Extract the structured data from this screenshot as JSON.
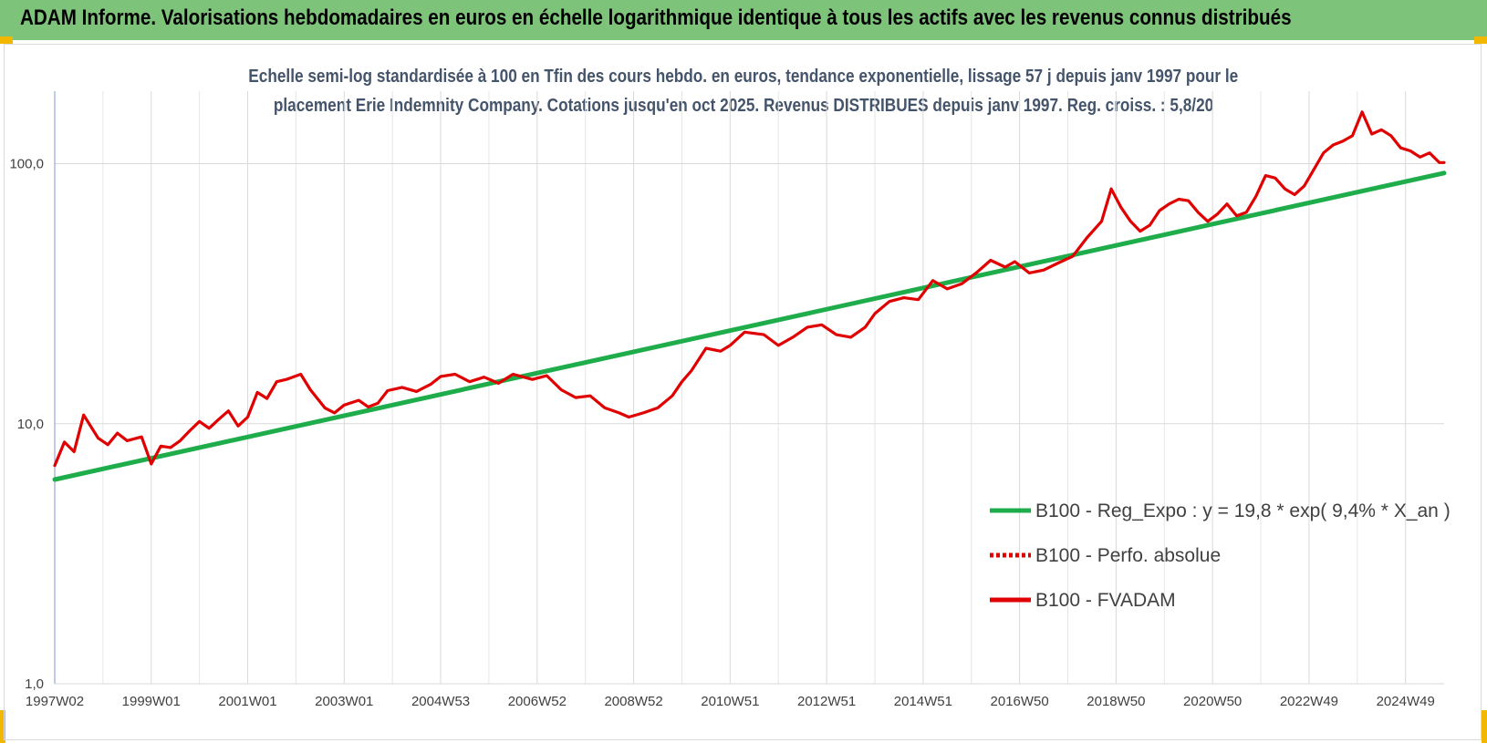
{
  "banner": {
    "text": "ADAM Informe. Valorisations hebdomadaires en euros en échelle logarithmique identique à tous les actifs avec les revenus connus distribués"
  },
  "chart_data": {
    "type": "line",
    "title_line1": "Echelle semi-log standardisée à 100 en Tfin des cours hebdo. en euros, tendance exponentielle, lissage 57 j depuis janv 1997 pour le",
    "title_line2": "placement Erie Indemnity Company. Cotations jusqu'en oct 2025. Revenus DISTRIBUES depuis janv 1997. Reg. croiss. : 5,8/20",
    "y_scale": "log",
    "ylim": [
      1,
      190
    ],
    "y_ticks": [
      1,
      10,
      100
    ],
    "y_tick_labels": [
      "1,0",
      "10,0",
      "100,0"
    ],
    "x_range": [
      1997.0,
      2025.8
    ],
    "x_ticks": [
      1997.0,
      1999.0,
      2001.0,
      2003.0,
      2005.0,
      2007.0,
      2009.0,
      2011.0,
      2013.0,
      2015.0,
      2017.0,
      2019.0,
      2021.0,
      2023.0,
      2025.0
    ],
    "x_tick_labels": [
      "1997W02",
      "1999W01",
      "2001W01",
      "2003W01",
      "2004W53",
      "2006W52",
      "2008W52",
      "2010W51",
      "2012W51",
      "2014W51",
      "2016W50",
      "2018W50",
      "2020W50",
      "2022W49",
      "2024W49"
    ],
    "grid": "vertical and horizontal",
    "legend_position": "bottom-right",
    "series": [
      {
        "name": "B100 - Reg_Expo : y = 19,8 * exp( 9,4% *  X_an )",
        "color": "#1fad4c",
        "style": "solid",
        "x": [
          1997.0,
          2025.8
        ],
        "y": [
          6.1,
          92
        ]
      },
      {
        "name": "B100 - Perfo. absolue",
        "color": "#e00000",
        "style": "dotted",
        "x": [],
        "y": []
      },
      {
        "name": "B100 - FVADAM",
        "color": "#e00000",
        "style": "solid",
        "x": [
          1997.0,
          1997.2,
          1997.4,
          1997.6,
          1997.9,
          1998.1,
          1998.3,
          1998.5,
          1998.8,
          1999.0,
          1999.2,
          1999.4,
          1999.6,
          1999.8,
          2000.0,
          2000.2,
          2000.4,
          2000.6,
          2000.8,
          2001.0,
          2001.2,
          2001.4,
          2001.6,
          2001.8,
          2002.1,
          2002.3,
          2002.6,
          2002.8,
          2003.0,
          2003.3,
          2003.5,
          2003.7,
          2003.9,
          2004.2,
          2004.5,
          2004.8,
          2005.0,
          2005.3,
          2005.6,
          2005.9,
          2006.2,
          2006.5,
          2006.9,
          2007.2,
          2007.5,
          2007.8,
          2008.1,
          2008.4,
          2008.7,
          2008.9,
          2009.2,
          2009.5,
          2009.8,
          2010.0,
          2010.2,
          2010.5,
          2010.8,
          2011.0,
          2011.3,
          2011.7,
          2012.0,
          2012.3,
          2012.6,
          2012.9,
          2013.2,
          2013.5,
          2013.8,
          2014.0,
          2014.3,
          2014.6,
          2014.9,
          2015.2,
          2015.5,
          2015.8,
          2016.1,
          2016.4,
          2016.7,
          2016.9,
          2017.2,
          2017.5,
          2017.8,
          2018.1,
          2018.4,
          2018.7,
          2018.9,
          2019.1,
          2019.3,
          2019.5,
          2019.7,
          2019.9,
          2020.1,
          2020.3,
          2020.5,
          2020.7,
          2020.9,
          2021.1,
          2021.3,
          2021.5,
          2021.7,
          2021.9,
          2022.1,
          2022.3,
          2022.5,
          2022.7,
          2022.9,
          2023.1,
          2023.3,
          2023.5,
          2023.7,
          2023.9,
          2024.1,
          2024.3,
          2024.5,
          2024.7,
          2024.9,
          2025.1,
          2025.3,
          2025.5,
          2025.7,
          2025.8
        ],
        "y": [
          6.9,
          8.5,
          7.8,
          10.8,
          8.8,
          8.3,
          9.2,
          8.6,
          8.9,
          7.0,
          8.2,
          8.1,
          8.6,
          9.4,
          10.2,
          9.6,
          10.4,
          11.2,
          9.8,
          10.6,
          13.2,
          12.5,
          14.5,
          14.8,
          15.5,
          13.5,
          11.5,
          11.0,
          11.8,
          12.3,
          11.6,
          12.0,
          13.4,
          13.8,
          13.3,
          14.2,
          15.2,
          15.5,
          14.5,
          15.1,
          14.3,
          15.5,
          14.8,
          15.3,
          13.5,
          12.6,
          12.8,
          11.5,
          11.0,
          10.6,
          11.0,
          11.5,
          12.8,
          14.5,
          16.0,
          19.5,
          19.0,
          20.0,
          22.5,
          22.0,
          20.0,
          21.5,
          23.5,
          24.0,
          22.0,
          21.5,
          23.5,
          26.5,
          29.5,
          30.5,
          30.0,
          35.5,
          33.0,
          34.5,
          38.0,
          42.5,
          40.0,
          42.0,
          38.0,
          39.0,
          41.5,
          44.0,
          52.0,
          60.0,
          80.0,
          68.0,
          60.0,
          55.0,
          58.0,
          66.0,
          70.0,
          73.0,
          72.0,
          65.0,
          60.0,
          64.0,
          70.0,
          63.0,
          65.0,
          75.0,
          90.0,
          88.0,
          80.0,
          76.0,
          82.0,
          95.0,
          110.0,
          118.0,
          122.0,
          128.0,
          158.0,
          130.0,
          135.0,
          128.0,
          115.0,
          112.0,
          106.0,
          110.0,
          101.0,
          101.0
        ]
      }
    ]
  }
}
